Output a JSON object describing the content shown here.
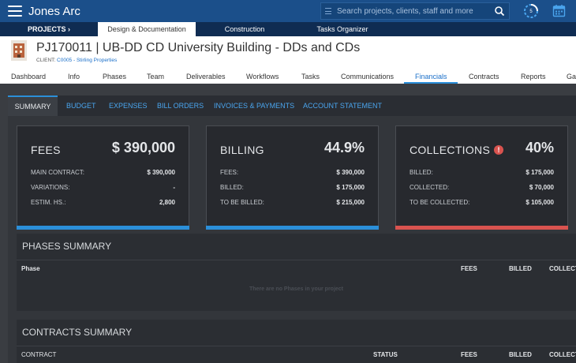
{
  "app": {
    "brand": "Jones Arc",
    "search_placeholder": "Search projects, clients, staff and more"
  },
  "modules": {
    "projects": "PROJECTS  ›",
    "design": "Design & Documentation",
    "construction": "Construction",
    "tasks": "Tasks Organizer"
  },
  "project": {
    "title": "PJ170011 | UB-DD CD University Building - DDs and CDs",
    "client_label": "CLIENT:",
    "client_link": "C0005 - Stirling Properties",
    "nav": [
      "Dashboard",
      "Info",
      "Phases",
      "Team",
      "Deliverables",
      "Workflows",
      "Tasks",
      "Communications",
      "Financials",
      "Contracts",
      "Reports",
      "Ga"
    ],
    "active_nav": "Financials"
  },
  "financial_tabs": [
    "SUMMARY",
    "BUDGET",
    "EXPENSES",
    "BILL ORDERS",
    "INVOICES & PAYMENTS",
    "ACCOUNT STATEMENT"
  ],
  "cards": {
    "fees": {
      "title": "FEES",
      "value": "$ 390,000",
      "rows": [
        {
          "label": "MAIN CONTRACT:",
          "value": "$ 390,000"
        },
        {
          "label": "VARIATIONS:",
          "value": "-"
        },
        {
          "label": "ESTIM. HS.:",
          "value": "2,800"
        }
      ],
      "bar_color": "#2b8fd9"
    },
    "billing": {
      "title": "BILLING",
      "value": "44.9%",
      "rows": [
        {
          "label": "FEES:",
          "value": "$ 390,000"
        },
        {
          "label": "BILLED:",
          "value": "$ 175,000"
        },
        {
          "label": "TO BE BILLED:",
          "value": "$ 215,000"
        }
      ],
      "bar_color": "#2b8fd9"
    },
    "collections": {
      "title": "COLLECTIONS",
      "value": "40%",
      "rows": [
        {
          "label": "BILLED:",
          "value": "$ 175,000"
        },
        {
          "label": "COLLECTED:",
          "value": "$ 70,000"
        },
        {
          "label": "TO BE COLLECTED:",
          "value": "$ 105,000"
        }
      ],
      "bar_color": "#d9534f"
    }
  },
  "phases_summary": {
    "title": "PHASES SUMMARY",
    "columns": [
      "Phase",
      "FEES",
      "BILLED",
      "COLLECT"
    ],
    "empty_text": "There are no Phases in your project"
  },
  "contracts_summary": {
    "title": "CONTRACTS SUMMARY",
    "columns": [
      "CONTRACT",
      "STATUS",
      "FEES",
      "BILLED",
      "COLLECT"
    ]
  }
}
